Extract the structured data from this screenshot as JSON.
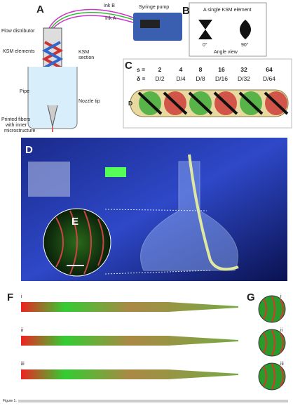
{
  "panels": {
    "A": {
      "label": "A",
      "ink_b": "Ink B",
      "ink_a": "Ink A",
      "pump": "Syringe pump",
      "flow_distributor": "Flow distributor",
      "ksm_elements": "KSM elements",
      "ksm_section": [
        "KSM",
        "section"
      ],
      "pipe": "Pipe",
      "nozzle_tip": "Nozzle tip",
      "fibers": [
        "Printed fibers",
        "with inner",
        "microstructure"
      ]
    },
    "B": {
      "label": "B",
      "title": "A single KSM element",
      "angles": [
        "0°",
        "90°"
      ],
      "caption": "Angle view"
    },
    "C": {
      "label": "C",
      "s_label": "s =",
      "delta_label": "δ =",
      "s": [
        2,
        4,
        8,
        16,
        32,
        64
      ],
      "delta": [
        "D/2",
        "D/4",
        "D/8",
        "D/16",
        "D/32",
        "D/64"
      ],
      "diameter": "D"
    },
    "D": {
      "label": "D"
    },
    "E": {
      "label": "E"
    },
    "F": {
      "label": "F",
      "rows": [
        "i",
        "ii",
        "iii"
      ]
    },
    "G": {
      "label": "G",
      "rows": [
        "i",
        "ii",
        "iii"
      ]
    }
  },
  "caption": "Figure 1."
}
